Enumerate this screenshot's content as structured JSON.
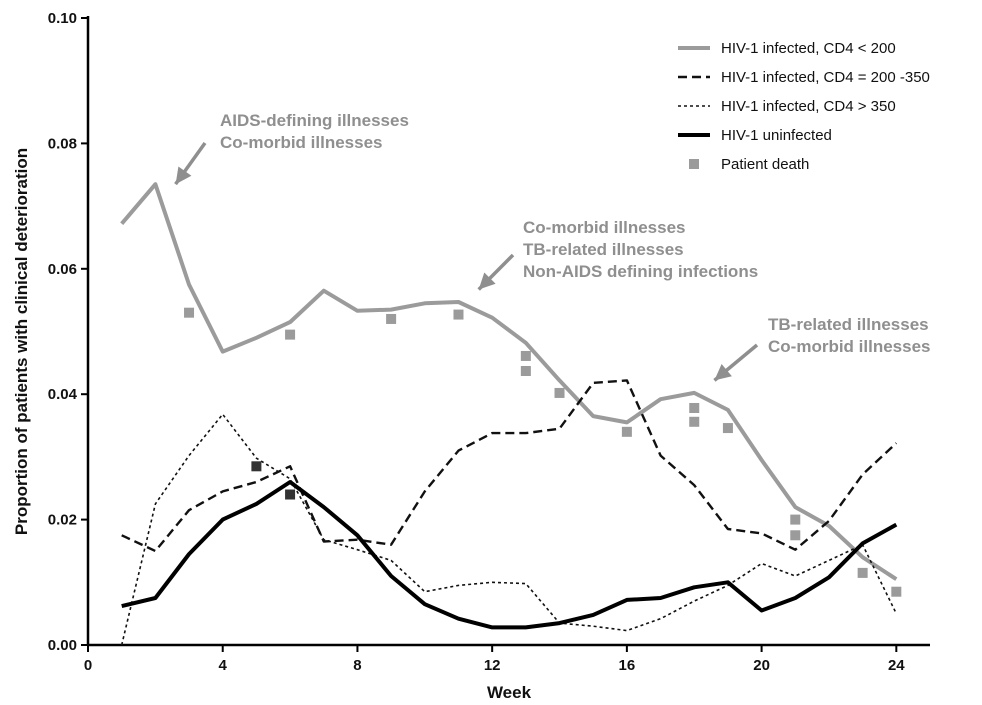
{
  "chart_data": {
    "type": "line",
    "title": "",
    "xlabel": "Week",
    "ylabel": "Proportion of patients with clinical deterioration",
    "xlim": [
      0,
      25
    ],
    "ylim": [
      0,
      0.1
    ],
    "xticks": [
      0,
      4,
      8,
      12,
      16,
      20,
      24
    ],
    "xtick_labels": [
      "0",
      "4",
      "8",
      "12",
      "16",
      "20",
      "24"
    ],
    "yticks": [
      0,
      0.02,
      0.04,
      0.06,
      0.08,
      0.1
    ],
    "ytick_labels": [
      "0.00",
      "0.02",
      "0.04",
      "0.06",
      "0.08",
      "0.10"
    ],
    "grid": false,
    "legend_position": "top-right",
    "series": [
      {
        "name": "HIV-1 infected, CD4 < 200",
        "style": "solid-thick",
        "color": "#9b9b9b",
        "x": [
          1,
          2,
          3,
          4,
          5,
          6,
          7,
          8,
          9,
          10,
          11,
          12,
          13,
          14,
          15,
          16,
          17,
          18,
          19,
          20,
          21,
          22,
          23,
          24
        ],
        "y": [
          0.0672,
          0.0735,
          0.0575,
          0.0468,
          0.049,
          0.0515,
          0.0565,
          0.0533,
          0.0535,
          0.0545,
          0.0547,
          0.0522,
          0.0482,
          0.0422,
          0.0365,
          0.0355,
          0.0392,
          0.0402,
          0.0375,
          0.0295,
          0.022,
          0.019,
          0.014,
          0.0105
        ]
      },
      {
        "name": "HIV-1 infected, CD4 = 200 -350",
        "style": "dashed",
        "color": "#111111",
        "x": [
          1,
          2,
          3,
          4,
          5,
          6,
          7,
          8,
          9,
          10,
          11,
          12,
          13,
          14,
          15,
          16,
          17,
          18,
          19,
          20,
          21,
          22,
          23,
          24
        ],
        "y": [
          0.0175,
          0.015,
          0.0215,
          0.0245,
          0.026,
          0.0285,
          0.0165,
          0.0168,
          0.016,
          0.0245,
          0.031,
          0.0338,
          0.0338,
          0.0345,
          0.0418,
          0.0422,
          0.0302,
          0.0255,
          0.0185,
          0.0178,
          0.0152,
          0.0198,
          0.0272,
          0.0322
        ]
      },
      {
        "name": "HIV-1 infected, CD4 > 350",
        "style": "dotted",
        "color": "#111111",
        "x": [
          1,
          2,
          3,
          4,
          5,
          6,
          7,
          8,
          9,
          10,
          11,
          12,
          13,
          14,
          15,
          16,
          17,
          18,
          19,
          20,
          21,
          22,
          23,
          24
        ],
        "y": [
          0.0,
          0.0225,
          0.0302,
          0.0368,
          0.0298,
          0.0265,
          0.0168,
          0.0152,
          0.0135,
          0.0085,
          0.0095,
          0.01,
          0.0098,
          0.0035,
          0.003,
          0.0023,
          0.0042,
          0.007,
          0.0095,
          0.013,
          0.011,
          0.0135,
          0.016,
          0.005
        ]
      },
      {
        "name": "HIV-1 uninfected",
        "style": "solid-thick",
        "color": "#000000",
        "x": [
          1,
          2,
          3,
          4,
          5,
          6,
          7,
          8,
          9,
          10,
          11,
          12,
          13,
          14,
          15,
          16,
          17,
          18,
          19,
          20,
          21,
          22,
          23,
          24
        ],
        "y": [
          0.0062,
          0.0075,
          0.0145,
          0.02,
          0.0225,
          0.026,
          0.022,
          0.0175,
          0.011,
          0.0065,
          0.0042,
          0.0028,
          0.0028,
          0.0035,
          0.0048,
          0.0072,
          0.0075,
          0.0092,
          0.01,
          0.0055,
          0.0075,
          0.0108,
          0.0162,
          0.0192
        ]
      },
      {
        "name": "Patient death",
        "style": "markers",
        "color": "#9b9b9b",
        "points": [
          {
            "x": 3,
            "y": 0.053
          },
          {
            "x": 6,
            "y": 0.0495
          },
          {
            "x": 9,
            "y": 0.052
          },
          {
            "x": 11,
            "y": 0.0527
          },
          {
            "x": 13,
            "y": 0.0461
          },
          {
            "x": 13,
            "y": 0.0437
          },
          {
            "x": 14,
            "y": 0.0402
          },
          {
            "x": 16,
            "y": 0.034
          },
          {
            "x": 18,
            "y": 0.0378
          },
          {
            "x": 18,
            "y": 0.0356
          },
          {
            "x": 19,
            "y": 0.0346
          },
          {
            "x": 21,
            "y": 0.02
          },
          {
            "x": 21,
            "y": 0.0175
          },
          {
            "x": 23,
            "y": 0.0115
          },
          {
            "x": 24,
            "y": 0.0085
          },
          {
            "x": 5,
            "y": 0.0285,
            "color": "#333333"
          },
          {
            "x": 6,
            "y": 0.024,
            "color": "#333333"
          }
        ]
      }
    ],
    "annotations": [
      {
        "lines": [
          "AIDS-defining illnesses",
          "Co-morbid illnesses"
        ],
        "arrow_to": {
          "x": 2.6,
          "y": 0.0735
        }
      },
      {
        "lines": [
          "Co-morbid illnesses",
          "TB-related illnesses",
          "Non-AIDS defining infections"
        ],
        "arrow_to": {
          "x": 11.6,
          "y": 0.0567
        }
      },
      {
        "lines": [
          "TB-related illnesses",
          "Co-morbid illnesses"
        ],
        "arrow_to": {
          "x": 18.6,
          "y": 0.0422
        }
      }
    ]
  }
}
